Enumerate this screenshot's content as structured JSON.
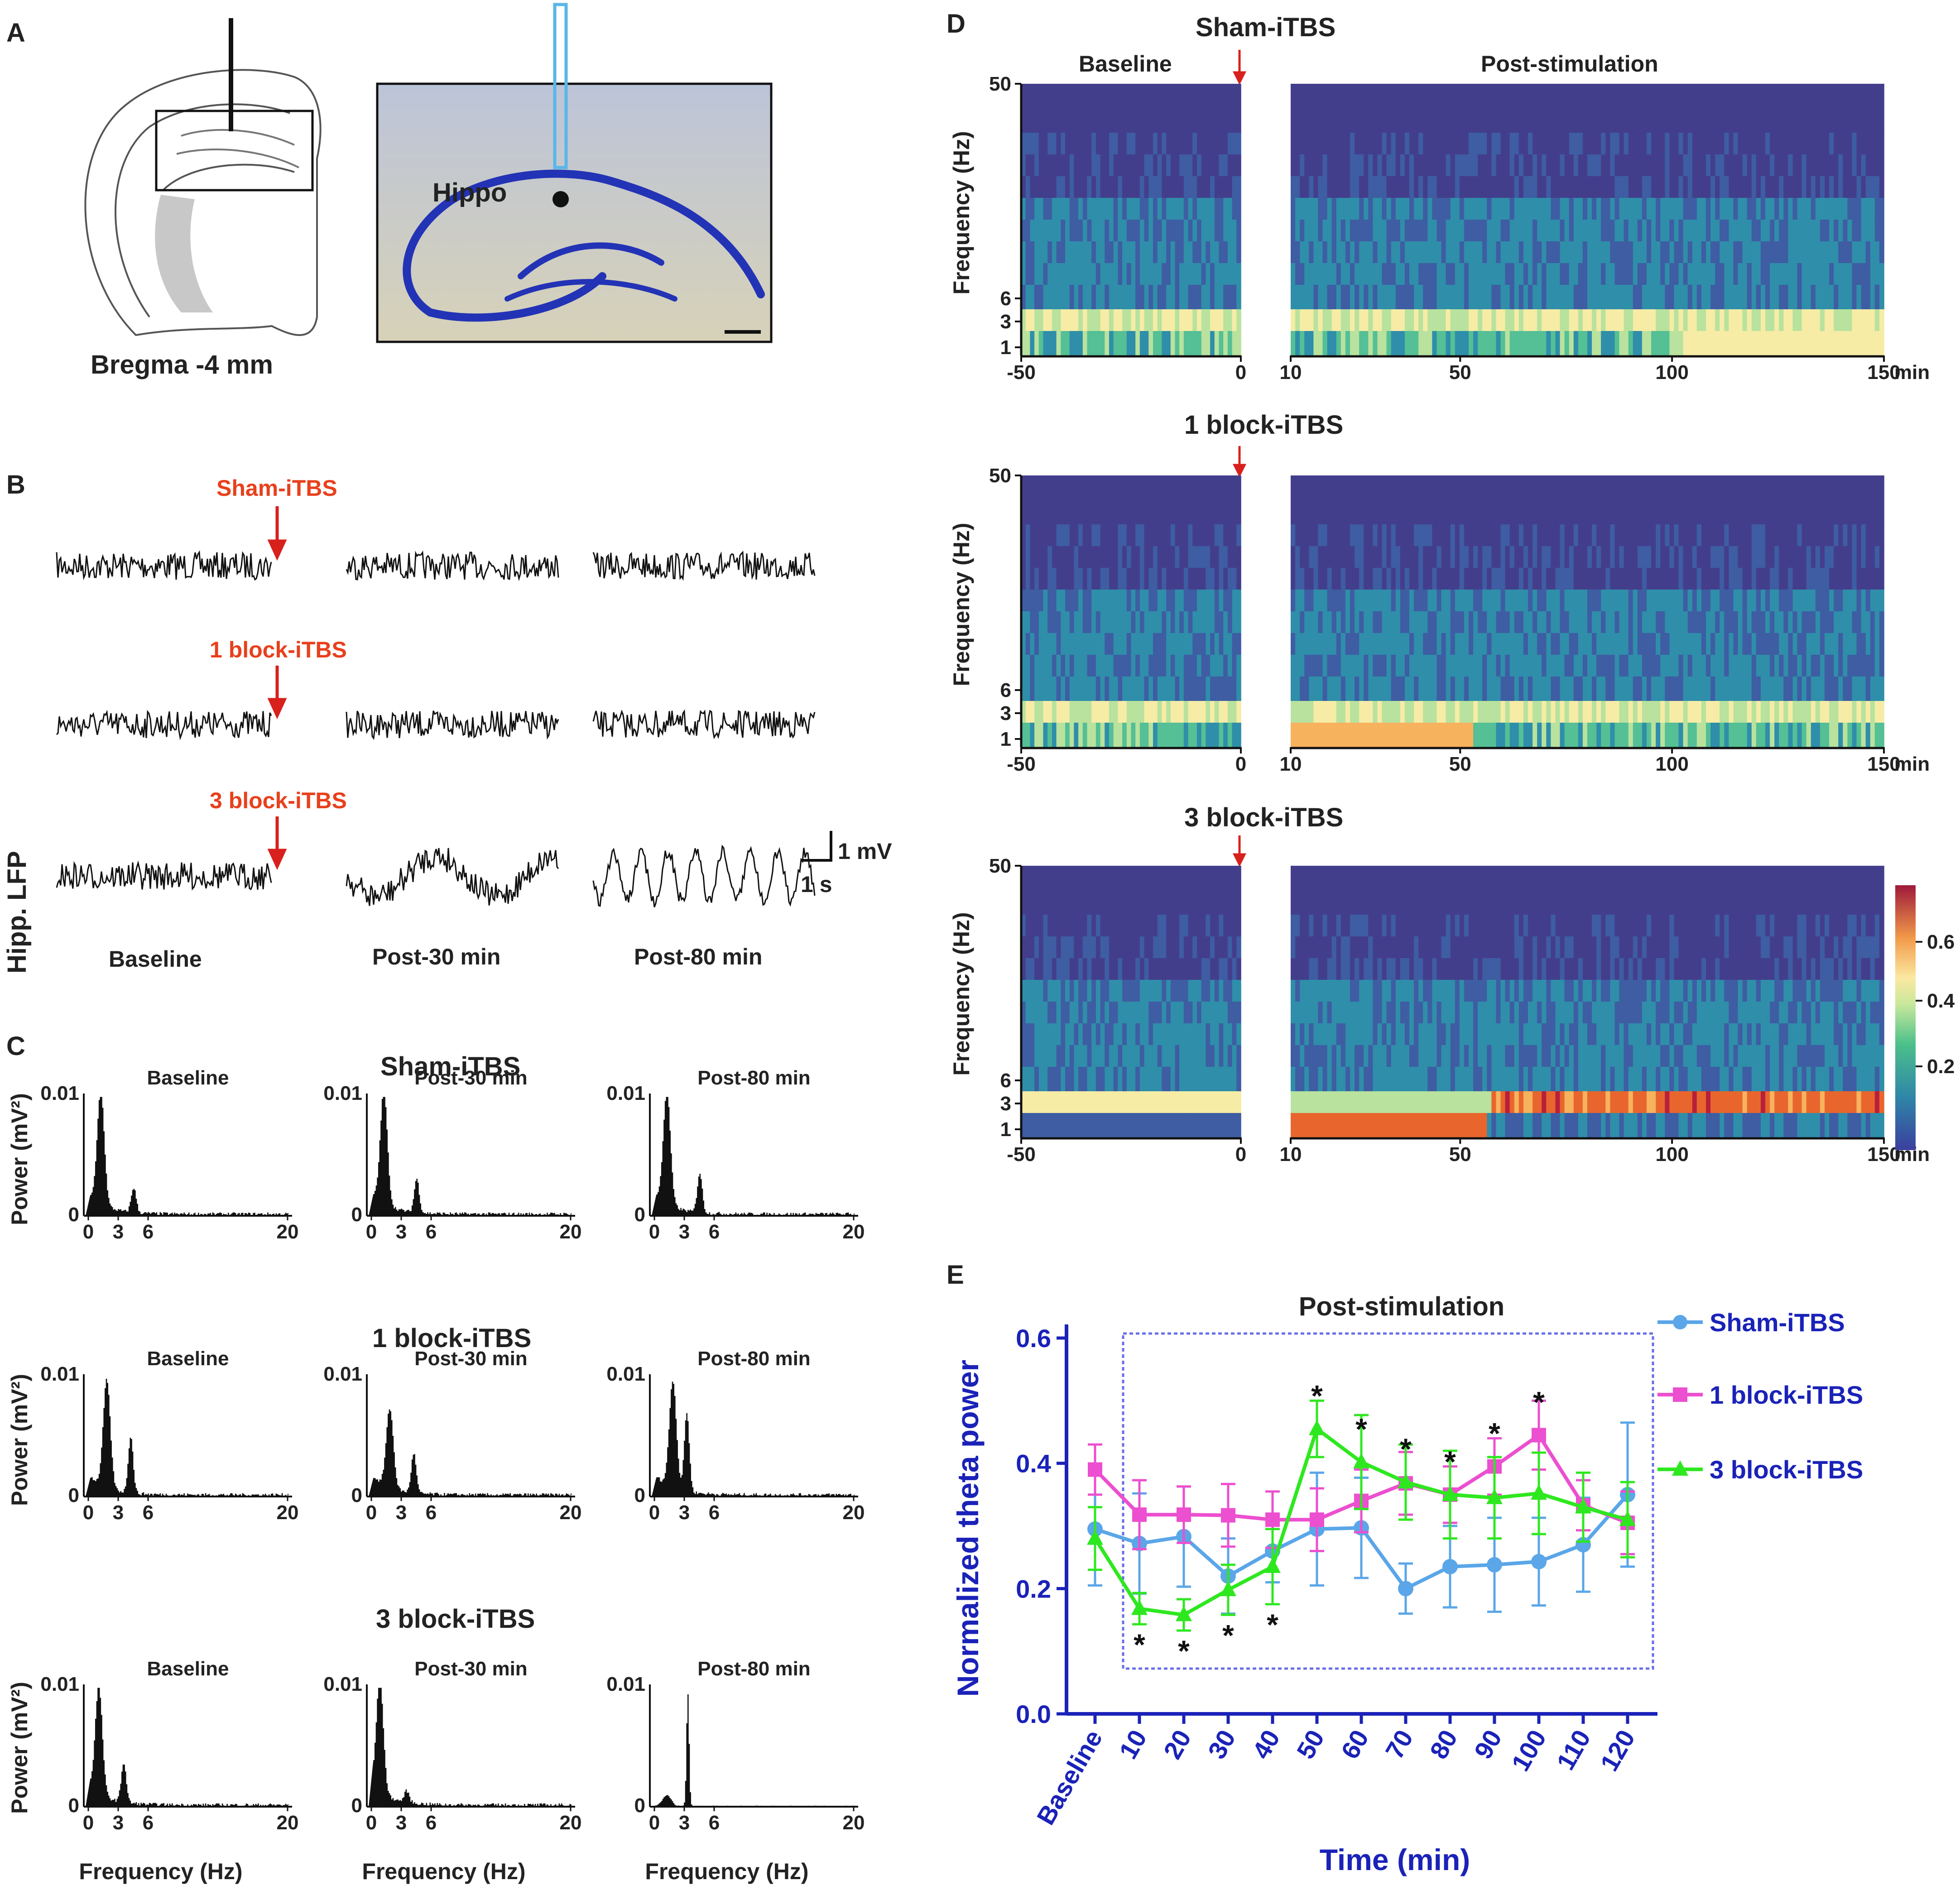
{
  "panel_labels": [
    "A",
    "B",
    "C",
    "D",
    "E"
  ],
  "colors": {
    "sham": "#5aa6e8",
    "one_block": "#ec4fcf",
    "three_block": "#2ee81f",
    "axis_blue": "#1a22b8",
    "title_red": "#e8401c",
    "ink": "#222222"
  },
  "panelA": {
    "atlas_label": "Bregma -4 mm",
    "region_label": "Hippo"
  },
  "panelB": {
    "ylabel": "Hipp. LFP",
    "groups": [
      "Sham-iTBS",
      "1 block-iTBS",
      "3 block-iTBS"
    ],
    "columns": [
      "Baseline",
      "Post-30 min",
      "Post-80 min"
    ],
    "scale_v": "1 mV",
    "scale_t": "1 s"
  },
  "panelC": {
    "ylabel": "Power (mV²)",
    "xlabel": "Frequency (Hz)",
    "ytick": "0.01",
    "yzero": "0",
    "xticks": [
      "0",
      "3",
      "6",
      "20"
    ],
    "rows": [
      {
        "group": "Sham-iTBS",
        "cols": [
          "Baseline",
          "Post-30 min",
          "Post-80 min"
        ]
      },
      {
        "group": "1 block-iTBS",
        "cols": [
          "Baseline",
          "Post-30 min",
          "Post-80 min"
        ]
      },
      {
        "group": "3 block-iTBS",
        "cols": [
          "Baseline",
          "Post-30 min",
          "Post-80 min"
        ]
      }
    ]
  },
  "panelD": {
    "ylabel": "Frequency (Hz)",
    "yticks": [
      "50",
      "6",
      "3",
      "1"
    ],
    "baseline_label": "Baseline",
    "post_label": "Post-stimulation",
    "left_xticks": [
      "-50",
      "0"
    ],
    "right_xticks": [
      "10",
      "50",
      "100",
      "150"
    ],
    "x_unit": "min",
    "rows": [
      "Sham-iTBS",
      "1 block-iTBS",
      "3 block-iTBS"
    ],
    "colorbar_ticks": [
      "0.6",
      "0.4",
      "0.2"
    ]
  },
  "chart_data": {
    "type": "line",
    "title": "Post-stimulation",
    "xlabel": "Time (min)",
    "ylabel": "Normalized theta power",
    "categories": [
      "Baseline",
      "10",
      "20",
      "30",
      "40",
      "50",
      "60",
      "70",
      "80",
      "90",
      "100",
      "110",
      "120"
    ],
    "ylim": [
      0.0,
      0.6
    ],
    "yticks": [
      "0.0",
      "0.2",
      "0.4",
      "0.6"
    ],
    "legend_position": "right",
    "series": [
      {
        "name": "Sham-iTBS",
        "marker": "circle",
        "values": [
          0.295,
          0.272,
          0.283,
          0.22,
          0.26,
          0.295,
          0.297,
          0.2,
          0.235,
          0.238,
          0.243,
          0.27,
          0.35
        ],
        "errors": [
          0.09,
          0.08,
          0.08,
          0.06,
          0.05,
          0.09,
          0.08,
          0.04,
          0.065,
          0.075,
          0.07,
          0.075,
          0.115
        ]
      },
      {
        "name": "1 block-iTBS",
        "marker": "square",
        "values": [
          0.39,
          0.318,
          0.318,
          0.317,
          0.31,
          0.31,
          0.34,
          0.368,
          0.35,
          0.395,
          0.445,
          0.333,
          0.305
        ],
        "errors": [
          0.04,
          0.055,
          0.045,
          0.05,
          0.045,
          0.05,
          0.05,
          0.05,
          0.045,
          0.045,
          0.055,
          0.04,
          0.05
        ]
      },
      {
        "name": "3 block-iTBS",
        "marker": "triangle",
        "values": [
          0.28,
          0.168,
          0.158,
          0.198,
          0.235,
          0.455,
          0.402,
          0.37,
          0.35,
          0.345,
          0.352,
          0.33,
          0.31
        ],
        "errors": [
          0.05,
          0.025,
          0.025,
          0.04,
          0.06,
          0.045,
          0.075,
          0.06,
          0.07,
          0.065,
          0.065,
          0.055,
          0.06
        ]
      }
    ],
    "significance_markers": {
      "below": [
        "10",
        "20",
        "30",
        "40"
      ],
      "above": [
        "50",
        "60",
        "70",
        "80",
        "90",
        "100"
      ],
      "symbol": "*"
    },
    "boxed_region": "10-120 min"
  }
}
